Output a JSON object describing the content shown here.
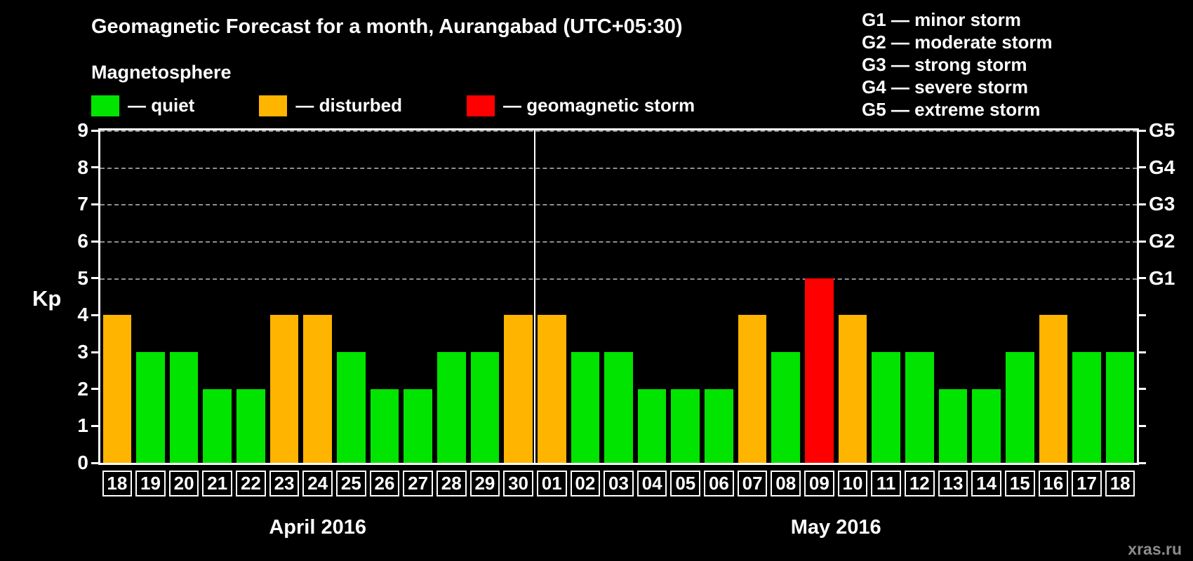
{
  "page": {
    "watermark": "xras.ru"
  },
  "magnetosphere_legend": {
    "heading": "Magnetosphere",
    "items": [
      {
        "name": "quiet",
        "label": "— quiet",
        "color": "#00e400"
      },
      {
        "name": "disturbed",
        "label": "— disturbed",
        "color": "#ffb400"
      },
      {
        "name": "storm",
        "label": "— geomagnetic storm",
        "color": "#ff0000"
      }
    ]
  },
  "g_scale_legend": {
    "items": [
      "G1 — minor storm",
      "G2 — moderate storm",
      "G3 — strong storm",
      "G4 — severe storm",
      "G5 — extreme storm"
    ]
  },
  "chart_data": {
    "type": "bar",
    "title": "Geomagnetic Forecast for a month, Aurangabad (UTC+05:30)",
    "ylabel": "Kp",
    "xlabel": "",
    "ylim": [
      0,
      9
    ],
    "yticks": [
      0,
      1,
      2,
      3,
      4,
      5,
      6,
      7,
      8,
      9
    ],
    "gridlines": [
      5,
      6,
      7,
      8,
      9
    ],
    "grid": "dashed",
    "legend_position": "top",
    "right_axis": [
      {
        "label": "G1",
        "value": 5
      },
      {
        "label": "G2",
        "value": 6
      },
      {
        "label": "G3",
        "value": 7
      },
      {
        "label": "G4",
        "value": 8
      },
      {
        "label": "G5",
        "value": 9
      }
    ],
    "months": [
      {
        "label": "April 2016",
        "days": 13
      },
      {
        "label": "May 2016",
        "days": 18
      }
    ],
    "categories": [
      "18",
      "19",
      "20",
      "21",
      "22",
      "23",
      "24",
      "25",
      "26",
      "27",
      "28",
      "29",
      "30",
      "01",
      "02",
      "03",
      "04",
      "05",
      "06",
      "07",
      "08",
      "09",
      "10",
      "11",
      "12",
      "13",
      "14",
      "15",
      "16",
      "17",
      "18"
    ],
    "values": [
      4,
      3,
      3,
      2,
      2,
      4,
      4,
      3,
      2,
      2,
      3,
      3,
      4,
      4,
      3,
      3,
      2,
      2,
      2,
      4,
      3,
      5,
      4,
      3,
      3,
      2,
      2,
      3,
      4,
      3,
      3
    ],
    "statuses": [
      "disturbed",
      "quiet",
      "quiet",
      "quiet",
      "quiet",
      "disturbed",
      "disturbed",
      "quiet",
      "quiet",
      "quiet",
      "quiet",
      "quiet",
      "disturbed",
      "disturbed",
      "quiet",
      "quiet",
      "quiet",
      "quiet",
      "quiet",
      "disturbed",
      "quiet",
      "storm",
      "disturbed",
      "quiet",
      "quiet",
      "quiet",
      "quiet",
      "quiet",
      "disturbed",
      "quiet",
      "quiet"
    ],
    "colors": {
      "quiet": "#00e400",
      "disturbed": "#ffb400",
      "storm": "#ff0000"
    }
  }
}
